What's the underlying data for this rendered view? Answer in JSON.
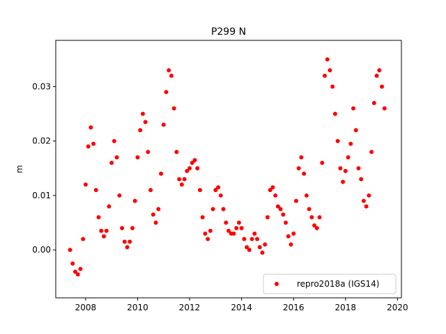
{
  "chart_data": {
    "type": "scatter",
    "title": "P299 N",
    "xlabel": "",
    "ylabel": "m",
    "xlim": [
      2006.85,
      2020.15
    ],
    "ylim": [
      -0.0088,
      0.0385
    ],
    "xticks": [
      2008,
      2010,
      2012,
      2014,
      2016,
      2018,
      2020
    ],
    "xtick_labels": [
      "2008",
      "2010",
      "2012",
      "2014",
      "2016",
      "2018",
      "2020"
    ],
    "yticks": [
      0.0,
      0.01,
      0.02,
      0.03
    ],
    "ytick_labels": [
      "0.00",
      "0.01",
      "0.02",
      "0.03"
    ],
    "grid": false,
    "legend_position": "lower-right",
    "series": [
      {
        "name": "repro2018a (IGS14)",
        "color": "#ff0000",
        "marker": "circle",
        "x": [
          2007.4,
          2007.5,
          2007.6,
          2007.7,
          2007.8,
          2007.9,
          2008.0,
          2008.1,
          2008.2,
          2008.3,
          2008.4,
          2008.5,
          2008.6,
          2008.7,
          2008.8,
          2008.9,
          2009.0,
          2009.1,
          2009.2,
          2009.3,
          2009.4,
          2009.5,
          2009.6,
          2009.7,
          2009.8,
          2009.9,
          2010.0,
          2010.1,
          2010.2,
          2010.3,
          2010.4,
          2010.5,
          2010.6,
          2010.7,
          2010.8,
          2010.9,
          2011.0,
          2011.1,
          2011.2,
          2011.3,
          2011.4,
          2011.5,
          2011.6,
          2011.7,
          2011.8,
          2011.9,
          2012.0,
          2012.1,
          2012.2,
          2012.3,
          2012.4,
          2012.5,
          2012.6,
          2012.7,
          2012.8,
          2012.9,
          2013.0,
          2013.1,
          2013.2,
          2013.3,
          2013.4,
          2013.5,
          2013.6,
          2013.7,
          2013.8,
          2013.9,
          2014.0,
          2014.1,
          2014.2,
          2014.3,
          2014.4,
          2014.5,
          2014.6,
          2014.7,
          2014.8,
          2014.9,
          2015.0,
          2015.1,
          2015.2,
          2015.3,
          2015.4,
          2015.5,
          2015.6,
          2015.7,
          2015.8,
          2015.9,
          2016.0,
          2016.1,
          2016.2,
          2016.3,
          2016.4,
          2016.5,
          2016.6,
          2016.7,
          2016.8,
          2016.9,
          2017.0,
          2017.1,
          2017.2,
          2017.3,
          2017.4,
          2017.5,
          2017.6,
          2017.7,
          2017.8,
          2017.9,
          2018.0,
          2018.1,
          2018.2,
          2018.3,
          2018.4,
          2018.5,
          2018.6,
          2018.7,
          2018.8,
          2018.9,
          2019.0,
          2019.1,
          2019.2,
          2019.3,
          2019.4,
          2019.5
        ],
        "y": [
          0.0,
          -0.0025,
          -0.004,
          -0.0045,
          -0.0035,
          0.002,
          0.012,
          0.019,
          0.0225,
          0.0195,
          0.011,
          0.006,
          0.0035,
          0.0025,
          0.0035,
          0.008,
          0.016,
          0.02,
          0.017,
          0.01,
          0.004,
          0.0015,
          0.0005,
          0.0015,
          0.004,
          0.009,
          0.017,
          0.022,
          0.025,
          0.0235,
          0.018,
          0.011,
          0.0065,
          0.005,
          0.0075,
          0.014,
          0.023,
          0.029,
          0.033,
          0.032,
          0.026,
          0.018,
          0.013,
          0.012,
          0.013,
          0.0145,
          0.015,
          0.016,
          0.0165,
          0.015,
          0.011,
          0.006,
          0.003,
          0.002,
          0.0035,
          0.0075,
          0.011,
          0.0115,
          0.01,
          0.0075,
          0.005,
          0.0035,
          0.003,
          0.003,
          0.004,
          0.005,
          0.004,
          0.002,
          0.0005,
          0.0,
          0.002,
          0.003,
          0.002,
          0.0005,
          -0.0005,
          0.001,
          0.006,
          0.011,
          0.0115,
          0.01,
          0.008,
          0.0075,
          0.0065,
          0.005,
          0.0025,
          0.001,
          0.003,
          0.009,
          0.015,
          0.017,
          0.014,
          0.01,
          0.0075,
          0.006,
          0.0045,
          0.004,
          0.006,
          0.016,
          0.032,
          0.035,
          0.033,
          0.03,
          0.025,
          0.02,
          0.015,
          0.0125,
          0.0145,
          0.017,
          0.0195,
          0.026,
          0.022,
          0.015,
          0.013,
          0.009,
          0.008,
          0.01,
          0.018,
          0.027,
          0.032,
          0.033,
          0.03,
          0.026
        ]
      }
    ]
  }
}
